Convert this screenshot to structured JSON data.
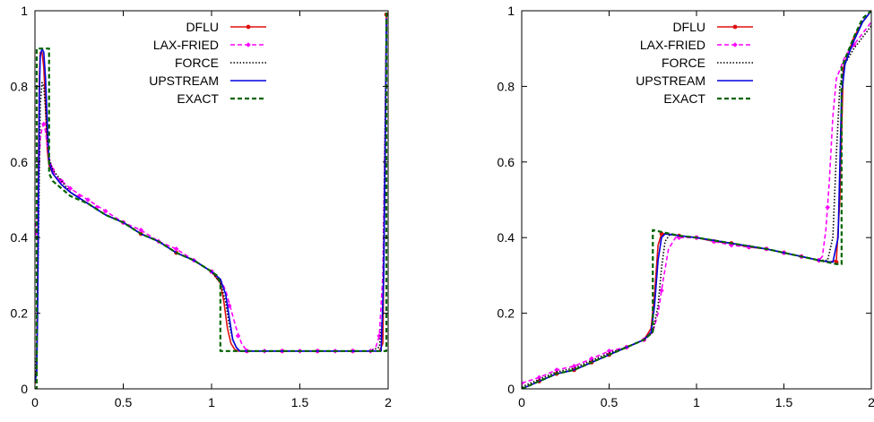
{
  "chart_data": [
    {
      "type": "line",
      "title": "",
      "xlabel": "",
      "ylabel": "",
      "xlim": [
        0,
        2
      ],
      "ylim": [
        0,
        1
      ],
      "xticks": [
        0,
        0.5,
        1,
        1.5,
        2
      ],
      "xtick_labels": [
        "0",
        "0.5",
        "1",
        "1.5",
        "2"
      ],
      "yticks": [
        0,
        0.2,
        0.4,
        0.6,
        0.8,
        1
      ],
      "ytick_labels": [
        "0",
        "0.2",
        "0.4",
        "0.6",
        "0.8",
        "1"
      ],
      "grid": false,
      "legend_position": "top-right",
      "series": [
        {
          "name": "DFLU",
          "color": "#e01010",
          "dash": "solid",
          "marker": "circle",
          "x": [
            0,
            0.01,
            0.015,
            0.02,
            0.025,
            0.03,
            0.04,
            0.05,
            0.06,
            0.07,
            0.08,
            0.1,
            0.15,
            0.2,
            0.3,
            0.4,
            0.5,
            0.6,
            0.7,
            0.8,
            0.9,
            1.0,
            1.05,
            1.07,
            1.09,
            1.11,
            1.13,
            1.15,
            1.2,
            1.3,
            1.4,
            1.5,
            1.6,
            1.7,
            1.8,
            1.9,
            1.95,
            1.97,
            1.98,
            1.99
          ],
          "y": [
            0.02,
            0.05,
            0.3,
            0.6,
            0.82,
            0.89,
            0.89,
            0.85,
            0.75,
            0.63,
            0.59,
            0.57,
            0.54,
            0.52,
            0.49,
            0.46,
            0.44,
            0.41,
            0.39,
            0.36,
            0.34,
            0.31,
            0.28,
            0.23,
            0.16,
            0.12,
            0.105,
            0.1,
            0.1,
            0.1,
            0.1,
            0.1,
            0.1,
            0.1,
            0.1,
            0.1,
            0.1,
            0.12,
            0.5,
            0.99
          ],
          "markers_x": [
            0,
            0.5,
            0.6,
            0.8,
            1.0,
            1.2,
            1.4,
            1.6,
            1.8,
            1.99
          ],
          "markers_y": [
            0.02,
            0.44,
            0.41,
            0.36,
            0.31,
            0.1,
            0.1,
            0.1,
            0.1,
            0.99
          ]
        },
        {
          "name": "LAX-FRIED",
          "color": "#ff00ff",
          "dash": "dashed",
          "marker": "diamond",
          "x": [
            0,
            0.01,
            0.02,
            0.03,
            0.04,
            0.05,
            0.06,
            0.07,
            0.08,
            0.1,
            0.12,
            0.15,
            0.2,
            0.3,
            0.4,
            0.5,
            0.6,
            0.7,
            0.8,
            0.9,
            1.0,
            1.05,
            1.08,
            1.11,
            1.14,
            1.17,
            1.2,
            1.3,
            1.4,
            1.5,
            1.6,
            1.7,
            1.8,
            1.9,
            1.93,
            1.95,
            1.97,
            1.98,
            1.99
          ],
          "y": [
            0.41,
            0.45,
            0.55,
            0.66,
            0.69,
            0.7,
            0.68,
            0.64,
            0.61,
            0.58,
            0.56,
            0.55,
            0.53,
            0.5,
            0.47,
            0.44,
            0.42,
            0.39,
            0.37,
            0.34,
            0.31,
            0.29,
            0.26,
            0.21,
            0.16,
            0.12,
            0.1,
            0.1,
            0.1,
            0.1,
            0.1,
            0.1,
            0.1,
            0.1,
            0.11,
            0.14,
            0.3,
            0.6,
            0.9
          ],
          "markers_x": [
            0,
            0.05,
            0.1,
            0.15,
            0.2,
            0.25,
            0.3,
            0.35,
            0.4,
            0.5,
            0.6,
            0.7,
            0.8,
            0.9,
            1.0,
            1.1,
            1.15,
            1.2,
            1.3,
            1.4,
            1.5,
            1.6,
            1.7,
            1.8,
            1.9,
            1.95
          ],
          "markers_y": [
            0.41,
            0.7,
            0.58,
            0.55,
            0.53,
            0.51,
            0.5,
            0.48,
            0.47,
            0.44,
            0.42,
            0.39,
            0.37,
            0.34,
            0.31,
            0.22,
            0.14,
            0.1,
            0.1,
            0.1,
            0.1,
            0.1,
            0.1,
            0.1,
            0.1,
            0.14
          ]
        },
        {
          "name": "FORCE",
          "color": "#000000",
          "dash": "dotted",
          "marker": "none",
          "x": [
            0,
            0.01,
            0.02,
            0.03,
            0.04,
            0.05,
            0.06,
            0.07,
            0.08,
            0.1,
            0.15,
            0.2,
            0.3,
            0.4,
            0.5,
            0.6,
            0.7,
            0.8,
            0.9,
            1.0,
            1.05,
            1.08,
            1.1,
            1.12,
            1.14,
            1.16,
            1.2,
            1.3,
            1.5,
            1.7,
            1.9,
            1.95,
            1.97,
            1.98,
            1.99
          ],
          "y": [
            0.02,
            0.1,
            0.4,
            0.75,
            0.81,
            0.8,
            0.74,
            0.66,
            0.61,
            0.58,
            0.55,
            0.52,
            0.49,
            0.46,
            0.44,
            0.41,
            0.39,
            0.36,
            0.34,
            0.31,
            0.28,
            0.23,
            0.17,
            0.13,
            0.11,
            0.1,
            0.1,
            0.1,
            0.1,
            0.1,
            0.1,
            0.11,
            0.2,
            0.6,
            0.95
          ]
        },
        {
          "name": "UPSTREAM",
          "color": "#0000e0",
          "dash": "solid",
          "marker": "none",
          "x": [
            0,
            0.01,
            0.015,
            0.02,
            0.025,
            0.03,
            0.04,
            0.05,
            0.06,
            0.07,
            0.08,
            0.1,
            0.15,
            0.2,
            0.3,
            0.4,
            0.5,
            0.6,
            0.7,
            0.8,
            0.9,
            1.0,
            1.05,
            1.08,
            1.1,
            1.12,
            1.14,
            1.16,
            1.2,
            1.5,
            1.9,
            1.96,
            1.975,
            1.985,
            1.99
          ],
          "y": [
            0.02,
            0.04,
            0.2,
            0.5,
            0.78,
            0.88,
            0.9,
            0.89,
            0.82,
            0.7,
            0.6,
            0.57,
            0.54,
            0.52,
            0.49,
            0.46,
            0.44,
            0.41,
            0.39,
            0.36,
            0.34,
            0.31,
            0.29,
            0.25,
            0.19,
            0.13,
            0.11,
            0.1,
            0.1,
            0.1,
            0.1,
            0.1,
            0.3,
            0.7,
            0.98
          ]
        },
        {
          "name": "EXACT",
          "color": "#006400",
          "dash": "dashed",
          "marker": "none",
          "x": [
            0,
            0.01,
            0.01,
            0.08,
            0.08,
            0.1,
            0.15,
            0.2,
            0.3,
            0.4,
            0.5,
            0.6,
            0.7,
            0.8,
            0.9,
            1.0,
            1.03,
            1.05,
            1.05,
            1.99,
            1.99
          ],
          "y": [
            0,
            0,
            0.9,
            0.9,
            0.57,
            0.55,
            0.53,
            0.51,
            0.49,
            0.46,
            0.44,
            0.41,
            0.39,
            0.36,
            0.34,
            0.31,
            0.3,
            0.28,
            0.1,
            0.1,
            1.0
          ]
        }
      ]
    },
    {
      "type": "line",
      "title": "",
      "xlabel": "",
      "ylabel": "",
      "xlim": [
        0,
        2
      ],
      "ylim": [
        0,
        1
      ],
      "xticks": [
        0,
        0.5,
        1,
        1.5,
        2
      ],
      "xtick_labels": [
        "0",
        "0.5",
        "1",
        "1.5",
        "2"
      ],
      "yticks": [
        0,
        0.2,
        0.4,
        0.6,
        0.8,
        1
      ],
      "ytick_labels": [
        "0",
        "0.2",
        "0.4",
        "0.6",
        "0.8",
        "1"
      ],
      "grid": false,
      "legend_position": "top-right",
      "series": [
        {
          "name": "DFLU",
          "color": "#e01010",
          "dash": "solid",
          "marker": "circle",
          "x": [
            0,
            0.1,
            0.2,
            0.3,
            0.4,
            0.5,
            0.6,
            0.7,
            0.74,
            0.76,
            0.78,
            0.8,
            0.82,
            0.9,
            1.0,
            1.1,
            1.2,
            1.3,
            1.4,
            1.5,
            1.6,
            1.7,
            1.76,
            1.8,
            1.82,
            1.84,
            1.9,
            1.95,
            2.0
          ],
          "y": [
            0,
            0.02,
            0.04,
            0.05,
            0.07,
            0.09,
            0.11,
            0.13,
            0.16,
            0.25,
            0.38,
            0.41,
            0.41,
            0.405,
            0.4,
            0.39,
            0.385,
            0.375,
            0.37,
            0.36,
            0.35,
            0.34,
            0.335,
            0.34,
            0.5,
            0.85,
            0.93,
            0.97,
            1.0
          ],
          "markers_x": [
            0,
            0.1,
            0.2,
            0.3,
            0.4,
            0.5,
            0.6,
            0.7,
            0.8,
            0.9,
            1.0,
            1.1,
            1.2,
            1.3,
            1.4,
            1.5,
            1.6,
            1.7,
            1.8
          ],
          "markers_y": [
            0,
            0.02,
            0.04,
            0.05,
            0.07,
            0.09,
            0.11,
            0.13,
            0.41,
            0.405,
            0.4,
            0.39,
            0.385,
            0.375,
            0.37,
            0.36,
            0.35,
            0.34,
            0.335
          ]
        },
        {
          "name": "LAX-FRIED",
          "color": "#ff00ff",
          "dash": "dashed",
          "marker": "diamond",
          "x": [
            0,
            0.1,
            0.2,
            0.3,
            0.4,
            0.5,
            0.6,
            0.7,
            0.75,
            0.78,
            0.81,
            0.84,
            0.88,
            0.9,
            1.0,
            1.1,
            1.2,
            1.3,
            1.4,
            1.5,
            1.6,
            1.7,
            1.72,
            1.74,
            1.76,
            1.78,
            1.8,
            1.85,
            1.9,
            1.95,
            2.0
          ],
          "y": [
            0.015,
            0.03,
            0.05,
            0.06,
            0.08,
            0.1,
            0.11,
            0.13,
            0.15,
            0.2,
            0.29,
            0.37,
            0.4,
            0.4,
            0.4,
            0.39,
            0.38,
            0.375,
            0.37,
            0.36,
            0.35,
            0.34,
            0.35,
            0.42,
            0.55,
            0.72,
            0.82,
            0.88,
            0.91,
            0.94,
            0.97
          ],
          "markers_x": [
            0,
            0.1,
            0.2,
            0.3,
            0.4,
            0.5,
            0.6,
            0.7,
            0.8,
            0.9,
            1.0,
            1.1,
            1.2,
            1.3,
            1.4,
            1.5,
            1.6,
            1.7,
            1.75,
            1.9
          ],
          "markers_y": [
            0.015,
            0.03,
            0.05,
            0.06,
            0.08,
            0.1,
            0.11,
            0.13,
            0.26,
            0.4,
            0.4,
            0.39,
            0.38,
            0.375,
            0.37,
            0.36,
            0.35,
            0.34,
            0.48,
            0.91
          ]
        },
        {
          "name": "FORCE",
          "color": "#000000",
          "dash": "dotted",
          "marker": "none",
          "x": [
            0,
            0.1,
            0.2,
            0.3,
            0.4,
            0.5,
            0.6,
            0.7,
            0.75,
            0.78,
            0.8,
            0.82,
            0.85,
            0.9,
            1.0,
            1.2,
            1.4,
            1.6,
            1.7,
            1.75,
            1.78,
            1.8,
            1.82,
            1.85,
            1.9,
            1.95,
            2.0
          ],
          "y": [
            0.005,
            0.025,
            0.045,
            0.055,
            0.075,
            0.095,
            0.11,
            0.13,
            0.15,
            0.22,
            0.32,
            0.39,
            0.41,
            0.405,
            0.4,
            0.385,
            0.37,
            0.35,
            0.34,
            0.34,
            0.4,
            0.62,
            0.8,
            0.86,
            0.9,
            0.93,
            0.96
          ]
        },
        {
          "name": "UPSTREAM",
          "color": "#0000e0",
          "dash": "solid",
          "marker": "none",
          "x": [
            0,
            0.1,
            0.2,
            0.3,
            0.4,
            0.5,
            0.6,
            0.7,
            0.74,
            0.76,
            0.78,
            0.8,
            0.82,
            0.9,
            1.0,
            1.2,
            1.4,
            1.6,
            1.7,
            1.78,
            1.81,
            1.83,
            1.85,
            1.9,
            1.95,
            2.0
          ],
          "y": [
            0,
            0.02,
            0.04,
            0.05,
            0.07,
            0.09,
            0.11,
            0.13,
            0.15,
            0.22,
            0.34,
            0.4,
            0.41,
            0.405,
            0.4,
            0.385,
            0.37,
            0.35,
            0.34,
            0.335,
            0.4,
            0.78,
            0.86,
            0.92,
            0.97,
            1.0
          ]
        },
        {
          "name": "EXACT",
          "color": "#006400",
          "dash": "dashed",
          "marker": "none",
          "x": [
            0,
            0.1,
            0.2,
            0.3,
            0.4,
            0.5,
            0.6,
            0.7,
            0.75,
            0.75,
            0.9,
            1.0,
            1.2,
            1.4,
            1.6,
            1.8,
            1.83,
            1.83,
            1.9,
            1.95,
            2.0
          ],
          "y": [
            0,
            0.02,
            0.04,
            0.05,
            0.07,
            0.09,
            0.11,
            0.13,
            0.15,
            0.42,
            0.405,
            0.4,
            0.385,
            0.37,
            0.35,
            0.33,
            0.33,
            0.85,
            0.93,
            0.98,
            1.0
          ]
        }
      ]
    }
  ]
}
